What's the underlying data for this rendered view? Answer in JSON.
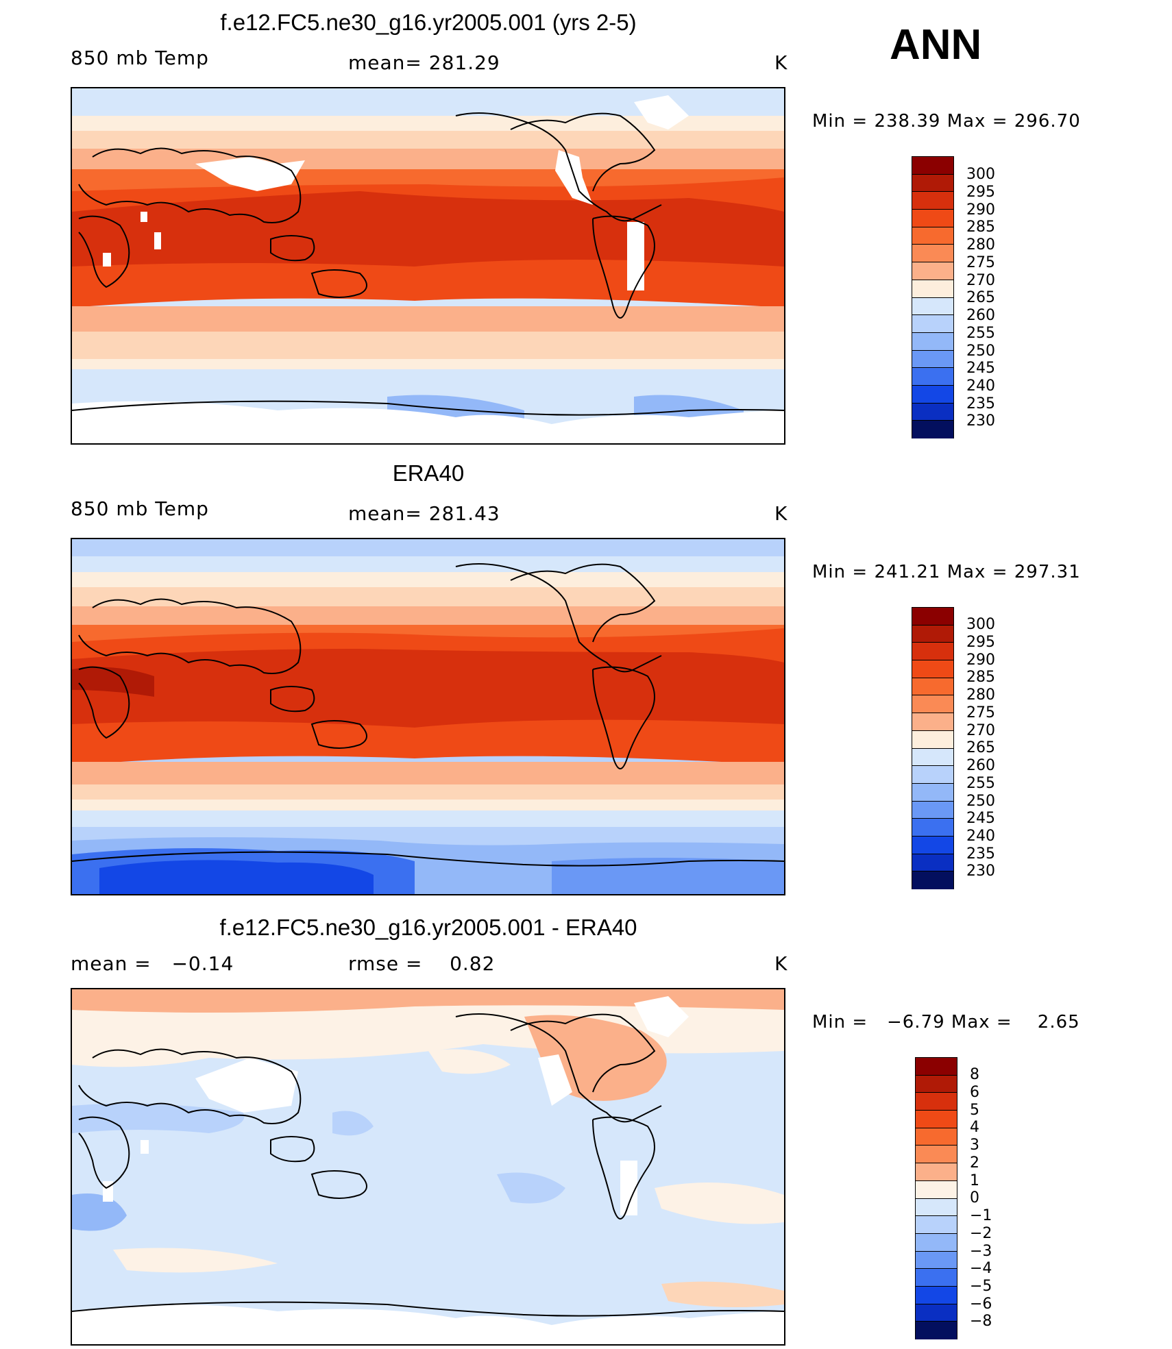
{
  "season": "ANN",
  "unit": "K",
  "panels": [
    {
      "title": "f.e12.FC5.ne30_g16.yr2005.001 (yrs 2-5)",
      "left_label": "850 mb Temp",
      "center_label": "mean= 281.29",
      "minmax": "Min = 238.39 Max = 296.70",
      "cbar_labels": [
        "300",
        "295",
        "290",
        "285",
        "280",
        "275",
        "270",
        "265",
        "260",
        "255",
        "250",
        "245",
        "240",
        "235",
        "230"
      ]
    },
    {
      "title": "ERA40",
      "left_label": "850 mb Temp",
      "center_label": "mean= 281.43",
      "minmax": "Min = 241.21 Max = 297.31",
      "cbar_labels": [
        "300",
        "295",
        "290",
        "285",
        "280",
        "275",
        "270",
        "265",
        "260",
        "255",
        "250",
        "245",
        "240",
        "235",
        "230"
      ]
    },
    {
      "title": "f.e12.FC5.ne30_g16.yr2005.001 - ERA40",
      "left_label": "mean =   −0.14",
      "center_label": "rmse =    0.82",
      "minmax": "Min =   −6.79 Max =    2.65",
      "cbar_labels": [
        "8",
        "6",
        "5",
        "4",
        "3",
        "2",
        "1",
        "0",
        "−1",
        "−2",
        "−3",
        "−4",
        "−5",
        "−6",
        "−8"
      ]
    }
  ],
  "colors": {
    "temp_scale": [
      "#8b0000",
      "#b01a06",
      "#d7300d",
      "#ef4a16",
      "#f76a2e",
      "#fa8a55",
      "#fbb08a",
      "#fdd6b8",
      "#fdeedd",
      "#d6e7fb",
      "#b8d2fb",
      "#93b8f8",
      "#6a98f5",
      "#3b70f0",
      "#1347e6",
      "#0a2fc2",
      "#061d8e",
      "#030f5e"
    ],
    "diff_scale": [
      "#8b0000",
      "#b01a06",
      "#d7300d",
      "#ef4a16",
      "#f76a2e",
      "#fa8a55",
      "#fbb08a",
      "#fdd6b8",
      "#fdf2e6",
      "#d6e7fb",
      "#b8d2fb",
      "#93b8f8",
      "#6a98f5",
      "#3b70f0",
      "#1347e6",
      "#0a2fc2",
      "#030f5e"
    ]
  }
}
